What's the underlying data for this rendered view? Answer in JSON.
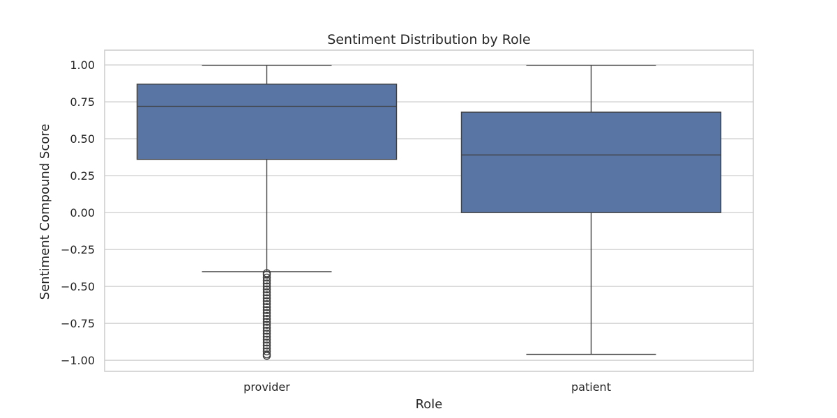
{
  "chart_data": {
    "type": "box",
    "title": "Sentiment Distribution by Role",
    "xlabel": "Role",
    "ylabel": "Sentiment Compound Score",
    "ylim": [
      -1.075,
      1.1
    ],
    "yticks": [
      1.0,
      0.75,
      0.5,
      0.25,
      0.0,
      -0.25,
      -0.5,
      -0.75,
      -1.0
    ],
    "ytick_labels": [
      "1.00",
      "0.75",
      "0.50",
      "0.25",
      "0.00",
      "−0.25",
      "−0.50",
      "−0.75",
      "−1.00"
    ],
    "categories": [
      "provider",
      "patient"
    ],
    "grid": true,
    "colors": {
      "box": "#5875a4",
      "line": "#3f3f3f",
      "grid": "#cccccc",
      "frame": "#cccccc"
    },
    "boxes": [
      {
        "category": "provider",
        "whisker_low": -0.4,
        "q1": 0.36,
        "median": 0.72,
        "q3": 0.87,
        "whisker_high": 0.997,
        "outliers": [
          -0.41,
          -0.42,
          -0.44,
          -0.46,
          -0.48,
          -0.5,
          -0.52,
          -0.54,
          -0.56,
          -0.58,
          -0.6,
          -0.62,
          -0.64,
          -0.66,
          -0.68,
          -0.7,
          -0.72,
          -0.74,
          -0.76,
          -0.78,
          -0.8,
          -0.82,
          -0.84,
          -0.86,
          -0.88,
          -0.9,
          -0.92,
          -0.94,
          -0.96,
          -0.97
        ]
      },
      {
        "category": "patient",
        "whisker_low": -0.96,
        "q1": 0.0,
        "median": 0.39,
        "q3": 0.68,
        "whisker_high": 0.997,
        "outliers": []
      }
    ]
  }
}
